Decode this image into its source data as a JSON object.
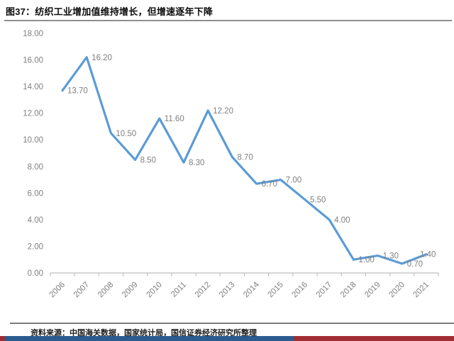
{
  "page": {
    "title": "图37：纺织工业增加值维持增长，但增速逐年下降",
    "source_note": "资料来源：中国海关数据，国家统计局，国信证券经济研究所整理"
  },
  "chart_data": {
    "type": "line",
    "categories": [
      "2006",
      "2007",
      "2008",
      "2009",
      "2010",
      "2011",
      "2012",
      "2013",
      "2014",
      "2015",
      "2016",
      "2017",
      "2018",
      "2019",
      "2020",
      "2021"
    ],
    "values": [
      13.7,
      16.2,
      10.5,
      8.5,
      11.6,
      8.3,
      12.2,
      8.7,
      6.7,
      7.0,
      5.5,
      4.0,
      1.0,
      1.3,
      0.7,
      1.4
    ],
    "data_labels": [
      "13.70",
      "16.20",
      "10.50",
      "8.50",
      "11.60",
      "8.30",
      "12.20",
      "8.70",
      "6.70",
      "7.00",
      "5.50",
      "4.00",
      "1.00",
      "1.30",
      "0.70",
      "1.40"
    ],
    "title": "",
    "xlabel": "",
    "ylabel": "",
    "ylim": [
      0,
      18
    ],
    "ytick_step": 2,
    "ytick_format_decimals": 2,
    "grid": false,
    "legend": "none",
    "line_color": "#5B9BD5",
    "label_color": "#7f7f7f",
    "axis_color": "#BFBFBF",
    "tick_label_color": "#808080"
  },
  "footer": {
    "bar_blue_color": "#2A5C8F",
    "bar_red_color": "#A02C33"
  }
}
